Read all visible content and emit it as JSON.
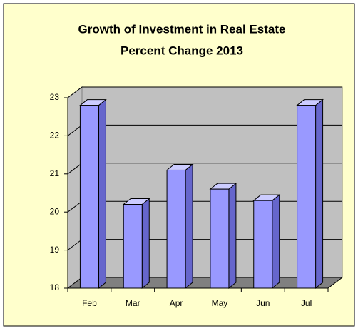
{
  "chart_data": {
    "type": "bar3d",
    "title": "Growth of Investment in Real Estate",
    "subtitle": "Percent Change 2013",
    "categories": [
      "Feb",
      "Mar",
      "Apr",
      "May",
      "Jun",
      "Jul"
    ],
    "values": [
      22.8,
      20.2,
      21.1,
      20.6,
      20.3,
      22.8
    ],
    "color": "#9999ff",
    "ylim": [
      18,
      23
    ],
    "yticks": [
      18,
      19,
      20,
      21,
      22,
      23
    ],
    "grid": true
  }
}
